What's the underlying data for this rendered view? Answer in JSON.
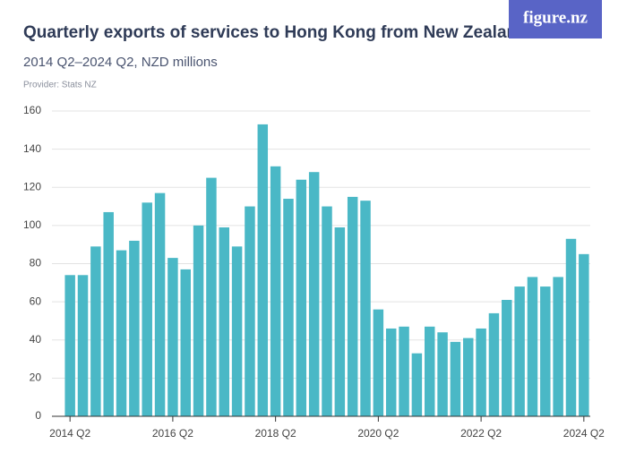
{
  "logo": "figure.nz",
  "chart_data": {
    "type": "bar",
    "title": "Quarterly exports of services to Hong Kong from New Zealand",
    "subtitle": "2014 Q2–2024 Q2, NZD millions",
    "source": "Provider: Stats NZ",
    "categories": [
      "2014 Q2",
      null,
      null,
      null,
      null,
      null,
      null,
      null,
      "2016 Q2",
      null,
      null,
      null,
      null,
      null,
      null,
      null,
      "2018 Q2",
      null,
      null,
      null,
      null,
      null,
      null,
      null,
      "2020 Q2",
      null,
      null,
      null,
      null,
      null,
      null,
      null,
      "2022 Q2",
      null,
      null,
      null,
      null,
      null,
      null,
      null,
      "2024 Q2"
    ],
    "values": [
      74,
      74,
      89,
      107,
      87,
      92,
      112,
      117,
      83,
      77,
      100,
      125,
      99,
      89,
      110,
      153,
      131,
      114,
      124,
      128,
      110,
      99,
      115,
      113,
      56,
      46,
      47,
      33,
      47,
      44,
      39,
      41,
      46,
      54,
      61,
      68,
      73,
      68,
      73,
      93,
      85
    ],
    "color": "#4ab8c6",
    "ylim": [
      0,
      160
    ],
    "yticks": [
      0,
      20,
      40,
      60,
      80,
      100,
      120,
      140,
      160
    ],
    "grid": true
  }
}
